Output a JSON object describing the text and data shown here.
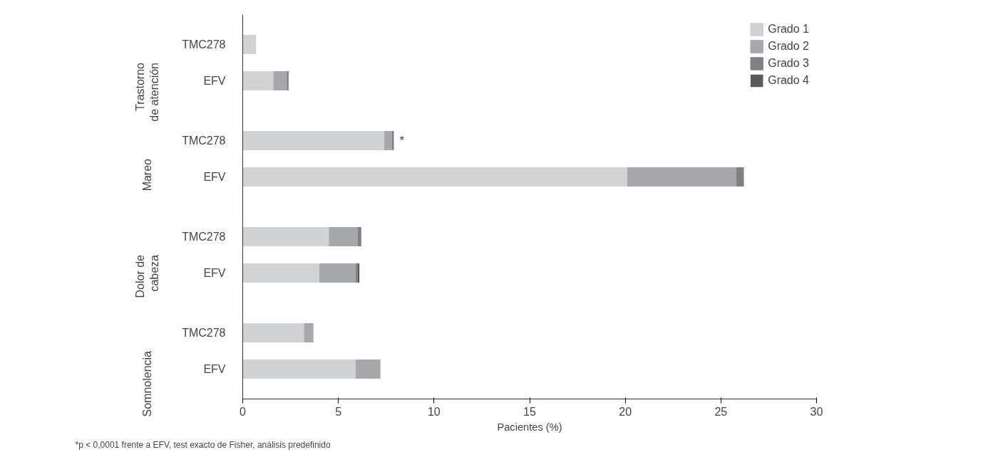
{
  "chart_data": {
    "type": "bar",
    "orientation": "horizontal",
    "stacked": true,
    "categories": [
      "TMC278",
      "EFV",
      "TMC278",
      "EFV",
      "TMC278",
      "EFV",
      "TMC278",
      "EFV"
    ],
    "series": [
      {
        "name": "Grado 1",
        "color": "#d1d2d4",
        "values": [
          0.7,
          1.6,
          7.4,
          20.1,
          4.5,
          4.0,
          3.2,
          5.9
        ]
      },
      {
        "name": "Grado 2",
        "color": "#a7a8ab",
        "values": [
          null,
          0.7,
          0.4,
          5.7,
          1.5,
          1.9,
          0.5,
          1.3
        ]
      },
      {
        "name": "Grado 3",
        "color": "#808184",
        "values": [
          null,
          0.1,
          0.1,
          0.4,
          0.2,
          0.1,
          null,
          null
        ]
      },
      {
        "name": "Grado 4",
        "color": "#58595b",
        "values": [
          null,
          null,
          null,
          null,
          null,
          0.1,
          null,
          null
        ]
      }
    ],
    "xlabel": "Pacientes (%)",
    "xlim": [
      0,
      30
    ],
    "xticks": [
      0,
      5,
      10,
      15,
      20,
      25,
      30
    ],
    "grid": false,
    "legend": "top right",
    "annotations": [
      "Trastorno\nde atención",
      "Mareo",
      "Dolor de\ncabeza",
      "Somnolencia",
      {
        "text": "*",
        "x": 7.9
      },
      "*p < 0,0001 frente a EFV, test exacto de Fisher, análisis predefinido"
    ]
  }
}
